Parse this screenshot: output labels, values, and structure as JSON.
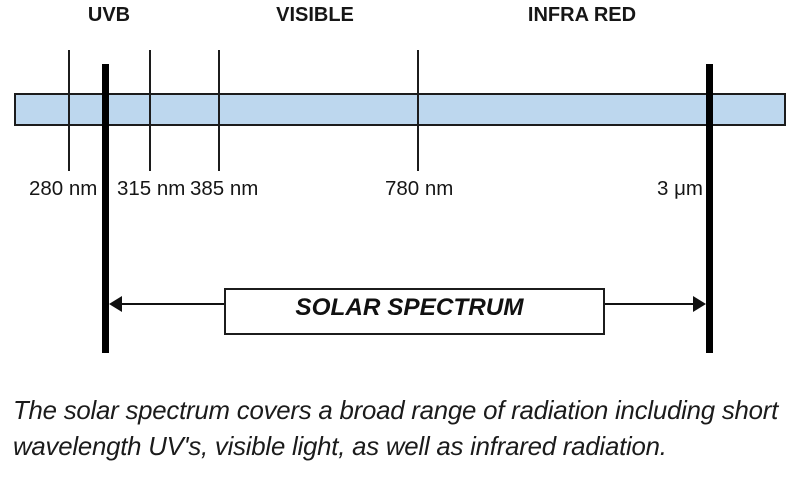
{
  "figure": {
    "title": "Solar spectrum diagram",
    "background": "#ffffff",
    "region_labels": [
      {
        "label": "UVB"
      },
      {
        "label": "VISIBLE"
      },
      {
        "label": "INFRA RED"
      }
    ],
    "bar": {
      "color": "#bdd7ee",
      "border_color": "#1c1c1c"
    },
    "wavelength_labels": [
      {
        "label": "280 nm"
      },
      {
        "label": "315 nm"
      },
      {
        "label": "385 nm"
      },
      {
        "label": "780 nm"
      },
      {
        "label": "3 μm"
      }
    ],
    "span_box": {
      "label": "SOLAR SPECTRUM"
    }
  },
  "caption": {
    "line1": "The solar spectrum covers a broad range of radiation including short",
    "line2": "wavelength UV's, visible light, as well as infrared radiation."
  }
}
